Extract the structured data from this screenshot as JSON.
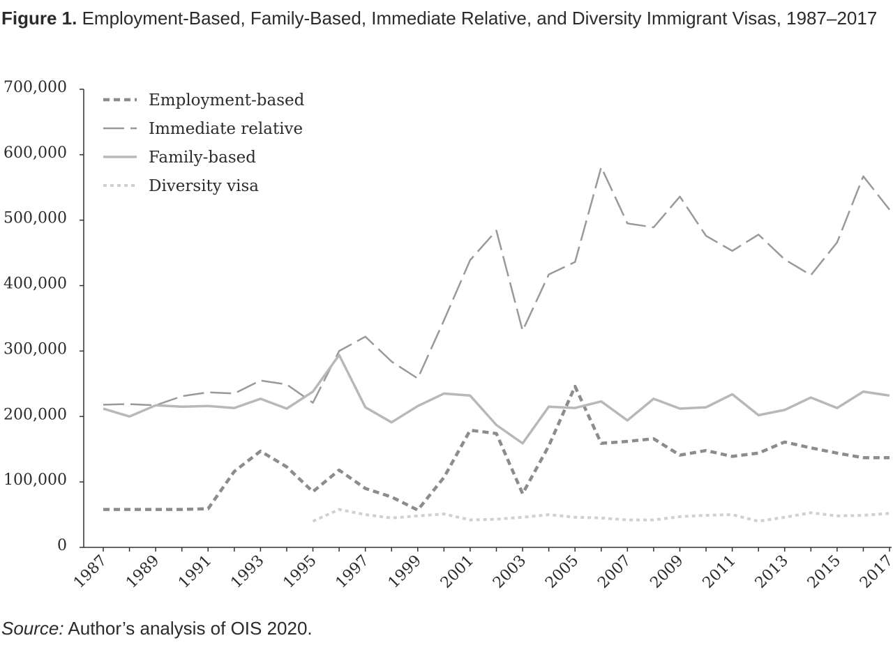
{
  "title": {
    "label": "Figure 1.",
    "text": "Employment-Based, Family-Based, Immediate Relative, and Diversity Immigrant Visas, 1987–2017"
  },
  "source": {
    "label": "Source:",
    "text": "Author’s analysis of OIS 2020."
  },
  "chart_data": {
    "type": "line",
    "title": "Employment-Based, Family-Based, Immediate Relative, and Diversity Immigrant Visas, 1987–2017",
    "xlabel": "",
    "ylabel": "",
    "ylim": [
      0,
      700000
    ],
    "yticks": [
      0,
      100000,
      200000,
      300000,
      400000,
      500000,
      600000,
      700000
    ],
    "ytick_labels": [
      "0",
      "100,000",
      "200,000",
      "300,000",
      "400,000",
      "500,000",
      "600,000",
      "700,000"
    ],
    "xtick_labels": [
      "1987",
      "1989",
      "1991",
      "1993",
      "1995",
      "1997",
      "1999",
      "2001",
      "2003",
      "2005",
      "2007",
      "2009",
      "2011",
      "2013",
      "2015",
      "2017"
    ],
    "x": [
      1987,
      1988,
      1989,
      1990,
      1991,
      1992,
      1993,
      1994,
      1995,
      1996,
      1997,
      1998,
      1999,
      2000,
      2001,
      2002,
      2003,
      2004,
      2005,
      2006,
      2007,
      2008,
      2009,
      2010,
      2011,
      2012,
      2013,
      2014,
      2015,
      2016,
      2017
    ],
    "grid": false,
    "legend_position": "top-left",
    "series": [
      {
        "name": "Employment-based",
        "style": "short-dash",
        "color": "#8c8c8c",
        "values": [
          58000,
          58000,
          58000,
          58000,
          59000,
          116000,
          147000,
          123000,
          85000,
          118000,
          90000,
          77000,
          57000,
          107000,
          179000,
          174000,
          82000,
          155000,
          246000,
          159000,
          162000,
          166000,
          141000,
          148000,
          139000,
          144000,
          161000,
          152000,
          144000,
          137000,
          137000
        ]
      },
      {
        "name": "Immediate relative",
        "style": "long-dash",
        "color": "#999999",
        "values": [
          218000,
          219000,
          217000,
          231000,
          237000,
          235000,
          255000,
          249000,
          221000,
          300000,
          322000,
          284000,
          258000,
          347000,
          439000,
          484000,
          331000,
          417000,
          436000,
          581000,
          495000,
          489000,
          536000,
          476000,
          453000,
          478000,
          440000,
          416000,
          466000,
          567000,
          516000
        ]
      },
      {
        "name": "Family-based",
        "style": "solid",
        "color": "#b8b8b8",
        "values": [
          212000,
          200000,
          217000,
          215000,
          216000,
          213000,
          227000,
          212000,
          238000,
          294000,
          214000,
          191000,
          216000,
          235000,
          232000,
          187000,
          159000,
          215000,
          213000,
          223000,
          194000,
          227000,
          212000,
          214000,
          234000,
          202000,
          210000,
          229000,
          213000,
          238000,
          232000
        ]
      },
      {
        "name": "Diversity visa",
        "style": "dotted",
        "color": "#d0d0d0",
        "x_start": 1995,
        "values": [
          null,
          null,
          null,
          null,
          null,
          null,
          null,
          null,
          40000,
          58000,
          50000,
          45000,
          48000,
          51000,
          42000,
          43000,
          46000,
          50000,
          46000,
          45000,
          42000,
          42000,
          47000,
          49000,
          50000,
          40000,
          46000,
          53000,
          48000,
          49000,
          52000
        ]
      }
    ]
  }
}
